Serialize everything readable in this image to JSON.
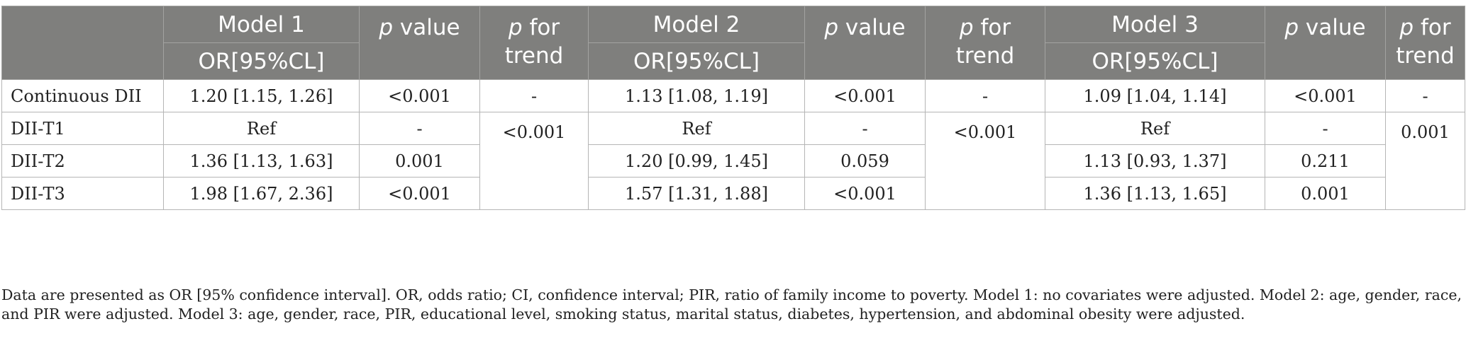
{
  "header": {
    "model1": "Model 1",
    "model2": "Model 2",
    "model3": "Model 3",
    "or_ci": "OR[95%CL]",
    "p_italic": "p",
    "p_value_suffix": " value",
    "p_trend_suffix": " for trend"
  },
  "rows": [
    {
      "label": "Continuous DII",
      "m1_or": "1.20 [1.15, 1.26]",
      "m1_p": "<0.001",
      "m1_trend": "-",
      "m2_or": "1.13 [1.08, 1.19]",
      "m2_p": "<0.001",
      "m2_trend": "-",
      "m3_or": "1.09 [1.04, 1.14]",
      "m3_p": "<0.001",
      "m3_trend": "-"
    },
    {
      "label": "DII-T1",
      "m1_or": "Ref",
      "m1_p": "-",
      "m2_or": "Ref",
      "m2_p": "-",
      "m3_or": "Ref",
      "m3_p": "-"
    },
    {
      "label": "DII-T2",
      "m1_or": "1.36 [1.13, 1.63]",
      "m1_p": "0.001",
      "m2_or": "1.20 [0.99, 1.45]",
      "m2_p": "0.059",
      "m3_or": "1.13 [0.93, 1.37]",
      "m3_p": "0.211"
    },
    {
      "label": "DII-T3",
      "m1_or": "1.98 [1.67, 2.36]",
      "m1_p": "<0.001",
      "m2_or": "1.57 [1.31, 1.88]",
      "m2_p": "<0.001",
      "m3_or": "1.36 [1.13, 1.65]",
      "m3_p": "0.001"
    }
  ],
  "trend_tertiles": {
    "m1": "<0.001",
    "m2": "<0.001",
    "m3": "0.001"
  },
  "footnote": "Data are presented as OR [95% confidence interval]. OR, odds ratio; CI, confidence interval; PIR, ratio of family income to poverty. Model 1: no covariates were adjusted. Model 2: age, gender, race, and PIR were adjusted. Model 3: age, gender, race, PIR, educational level, smoking status, marital status, diabetes, hypertension, and abdominal obesity were adjusted.",
  "colors": {
    "header_bg": "#7f7f7d",
    "header_text": "#ffffff",
    "grid": "#b5b5b5"
  }
}
